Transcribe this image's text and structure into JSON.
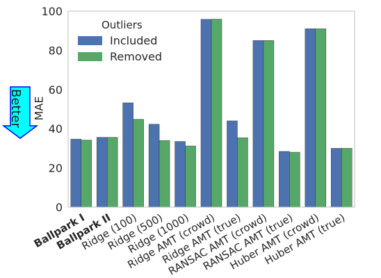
{
  "chart_data": {
    "type": "bar",
    "title": "",
    "xlabel": "",
    "ylabel": "MAE",
    "ylim": [
      0,
      100
    ],
    "yticks": [
      0,
      20,
      40,
      60,
      80,
      100
    ],
    "grid": false,
    "legend": {
      "title": "Outliers",
      "placement": "top-left"
    },
    "categories": [
      "Ballpark I",
      "Ballpark II",
      "Ridge (100)",
      "Ridge (500)",
      "Ridge (1000)",
      "Ridge AMT (crowd)",
      "Ridge AMT (true)",
      "RANSAC AMT (crowd)",
      "RANSAC AMT (true)",
      "Huber AMT (crowd)",
      "Huber AMT (true)"
    ],
    "bold_categories": [
      "Ballpark I",
      "Ballpark II"
    ],
    "series": [
      {
        "name": "Included",
        "color": "#4c72b0",
        "values": [
          34.7,
          35.6,
          53.2,
          42.3,
          33.5,
          95.8,
          44.0,
          85.0,
          28.4,
          91.0,
          30.0
        ]
      },
      {
        "name": "Removed",
        "color": "#55a868",
        "values": [
          34.2,
          35.6,
          44.8,
          34.0,
          31.2,
          95.9,
          35.4,
          85.0,
          28.0,
          91.0,
          30.0
        ]
      }
    ],
    "annotation": {
      "text": "Better",
      "arrow_direction": "down",
      "arrow_fill": "#00ffff",
      "arrow_stroke": "#0000ff"
    }
  }
}
